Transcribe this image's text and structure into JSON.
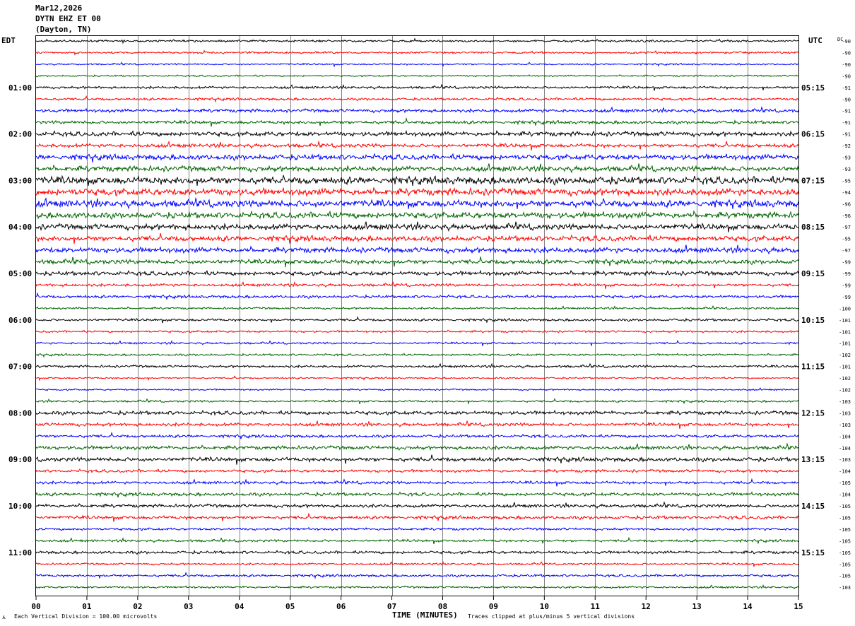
{
  "header": {
    "date": "Mar12,2026",
    "station": "DYTN EHZ ET 00",
    "location": "(Dayton, TN)"
  },
  "axes": {
    "left_tz": "EDT",
    "right_tz": "UTC",
    "dc_label": "DC",
    "x_title": "TIME (MINUTES)",
    "x_ticks": [
      "00",
      "01",
      "02",
      "03",
      "04",
      "05",
      "06",
      "07",
      "08",
      "09",
      "10",
      "11",
      "12",
      "13",
      "14",
      "15"
    ]
  },
  "footer": {
    "scale_note": "Each Vertical Division =  100.00 microvolts",
    "clip_note": "Traces clipped at plus/minus 5 vertical divisions"
  },
  "colors": {
    "c0": "#000000",
    "c1": "#ff0000",
    "c2": "#0000ff",
    "c3": "#006400",
    "grid": "#808080"
  },
  "chart_data": {
    "type": "line",
    "title": "DYTN EHZ ET 00",
    "xlabel": "TIME (MINUTES)",
    "xlim": [
      0,
      15
    ],
    "trace_color_cycle": [
      "#000000",
      "#ff0000",
      "#0000ff",
      "#006400"
    ],
    "traces_per_hour": 4,
    "trace_count": 48,
    "left_hour_labels": [
      "01:00",
      "02:00",
      "03:00",
      "04:00",
      "05:00",
      "06:00",
      "07:00",
      "08:00",
      "09:00",
      "10:00",
      "11:00"
    ],
    "right_hour_labels": [
      "05:15",
      "06:15",
      "07:15",
      "08:15",
      "09:15",
      "10:15",
      "11:15",
      "12:15",
      "13:15",
      "14:15",
      "15:15"
    ],
    "dc_offsets": [
      "90",
      "90",
      "90",
      "90",
      "91",
      "90",
      "91",
      "91",
      "91",
      "92",
      "93",
      "93",
      "95",
      "94",
      "96",
      "96",
      "97",
      "95",
      "97",
      "99",
      "99",
      "99",
      "99",
      "100",
      "101",
      "101",
      "101",
      "102",
      "101",
      "102",
      "102",
      "103",
      "103",
      "103",
      "104",
      "104",
      "103",
      "104",
      "105",
      "104",
      "105",
      "105",
      "105",
      "105",
      "105",
      "105",
      "105",
      "103"
    ],
    "trace_noise_level": [
      1.0,
      1.0,
      0.8,
      0.8,
      1.2,
      1.2,
      1.6,
      1.6,
      2.2,
      1.8,
      2.6,
      2.6,
      3.6,
      3.4,
      3.4,
      3.0,
      2.8,
      2.6,
      2.6,
      2.2,
      2.0,
      1.4,
      1.4,
      1.0,
      1.2,
      1.0,
      1.0,
      1.0,
      1.2,
      0.8,
      0.8,
      1.0,
      1.8,
      1.6,
      1.4,
      1.8,
      2.0,
      1.4,
      1.4,
      1.6,
      1.6,
      1.6,
      1.2,
      1.2,
      1.4,
      1.0,
      1.2,
      1.0
    ]
  }
}
